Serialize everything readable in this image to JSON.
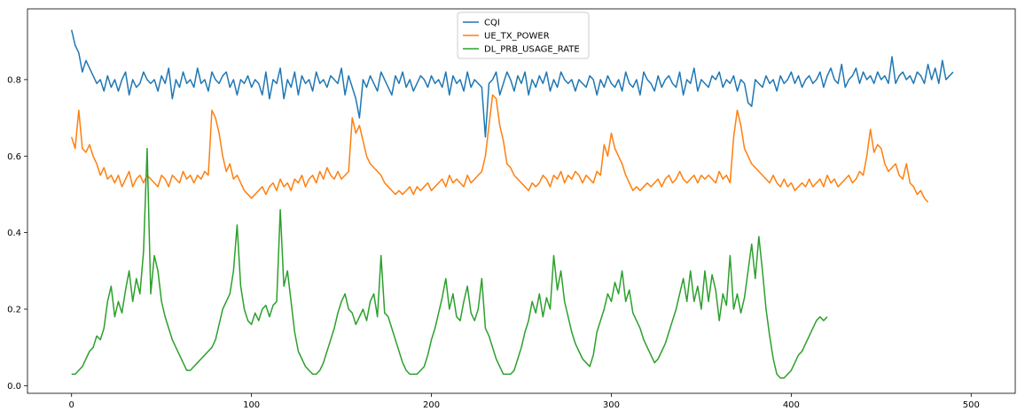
{
  "chart_data": {
    "type": "line",
    "title": "",
    "xlabel": "",
    "ylabel": "",
    "xlim": [
      -24.5,
      524.5
    ],
    "ylim": [
      -0.02,
      0.985
    ],
    "xticks": [
      0,
      100,
      200,
      300,
      400,
      500
    ],
    "xtick_labels": [
      "0",
      "100",
      "200",
      "300",
      "400",
      "500"
    ],
    "yticks": [
      0.0,
      0.2,
      0.4,
      0.6,
      0.8
    ],
    "ytick_labels": [
      "0.0",
      "0.2",
      "0.4",
      "0.6",
      "0.8"
    ],
    "grid": false,
    "legend_position": "top-center",
    "x_step": 2,
    "series": [
      {
        "name": "CQI",
        "color": "#1f77b4",
        "values": [
          0.93,
          0.89,
          0.87,
          0.82,
          0.85,
          0.83,
          0.81,
          0.79,
          0.8,
          0.77,
          0.81,
          0.78,
          0.8,
          0.77,
          0.8,
          0.82,
          0.76,
          0.8,
          0.78,
          0.79,
          0.82,
          0.8,
          0.79,
          0.8,
          0.77,
          0.81,
          0.79,
          0.83,
          0.75,
          0.8,
          0.78,
          0.82,
          0.79,
          0.8,
          0.78,
          0.83,
          0.79,
          0.8,
          0.77,
          0.82,
          0.8,
          0.79,
          0.81,
          0.82,
          0.78,
          0.8,
          0.76,
          0.8,
          0.79,
          0.81,
          0.78,
          0.8,
          0.79,
          0.76,
          0.82,
          0.75,
          0.8,
          0.79,
          0.83,
          0.75,
          0.8,
          0.78,
          0.82,
          0.76,
          0.81,
          0.79,
          0.8,
          0.77,
          0.82,
          0.79,
          0.8,
          0.78,
          0.81,
          0.8,
          0.79,
          0.83,
          0.76,
          0.81,
          0.78,
          0.75,
          0.7,
          0.8,
          0.78,
          0.81,
          0.79,
          0.77,
          0.82,
          0.8,
          0.78,
          0.76,
          0.81,
          0.79,
          0.82,
          0.78,
          0.8,
          0.77,
          0.79,
          0.81,
          0.8,
          0.78,
          0.81,
          0.79,
          0.8,
          0.78,
          0.82,
          0.76,
          0.81,
          0.79,
          0.8,
          0.77,
          0.82,
          0.78,
          0.8,
          0.79,
          0.78,
          0.65,
          0.79,
          0.8,
          0.82,
          0.76,
          0.79,
          0.82,
          0.8,
          0.77,
          0.81,
          0.79,
          0.82,
          0.76,
          0.8,
          0.78,
          0.81,
          0.79,
          0.82,
          0.77,
          0.8,
          0.78,
          0.82,
          0.8,
          0.79,
          0.8,
          0.77,
          0.8,
          0.79,
          0.78,
          0.81,
          0.8,
          0.76,
          0.8,
          0.78,
          0.81,
          0.79,
          0.78,
          0.8,
          0.77,
          0.82,
          0.79,
          0.78,
          0.8,
          0.76,
          0.82,
          0.8,
          0.79,
          0.77,
          0.81,
          0.78,
          0.8,
          0.81,
          0.79,
          0.78,
          0.82,
          0.76,
          0.8,
          0.79,
          0.83,
          0.77,
          0.8,
          0.79,
          0.78,
          0.81,
          0.8,
          0.82,
          0.78,
          0.8,
          0.79,
          0.81,
          0.77,
          0.8,
          0.79,
          0.74,
          0.73,
          0.8,
          0.79,
          0.78,
          0.81,
          0.79,
          0.8,
          0.77,
          0.81,
          0.79,
          0.8,
          0.82,
          0.79,
          0.81,
          0.78,
          0.8,
          0.81,
          0.79,
          0.8,
          0.82,
          0.78,
          0.81,
          0.83,
          0.8,
          0.79,
          0.84,
          0.78,
          0.8,
          0.81,
          0.83,
          0.79,
          0.82,
          0.8,
          0.81,
          0.79,
          0.82,
          0.8,
          0.81,
          0.79,
          0.86,
          0.79,
          0.81,
          0.82,
          0.8,
          0.81,
          0.79,
          0.82,
          0.81,
          0.79,
          0.84,
          0.8,
          0.83,
          0.79,
          0.85,
          0.8,
          0.81,
          0.82
        ]
      },
      {
        "name": "UE_TX_POWER",
        "color": "#ff7f0e",
        "values": [
          0.65,
          0.62,
          0.72,
          0.62,
          0.61,
          0.63,
          0.6,
          0.58,
          0.55,
          0.57,
          0.54,
          0.55,
          0.53,
          0.55,
          0.52,
          0.54,
          0.56,
          0.52,
          0.54,
          0.55,
          0.53,
          0.55,
          0.54,
          0.53,
          0.52,
          0.55,
          0.54,
          0.52,
          0.55,
          0.54,
          0.53,
          0.56,
          0.54,
          0.55,
          0.53,
          0.55,
          0.54,
          0.56,
          0.55,
          0.72,
          0.7,
          0.66,
          0.6,
          0.56,
          0.58,
          0.54,
          0.55,
          0.53,
          0.51,
          0.5,
          0.49,
          0.5,
          0.51,
          0.52,
          0.5,
          0.52,
          0.53,
          0.51,
          0.54,
          0.52,
          0.53,
          0.51,
          0.54,
          0.53,
          0.55,
          0.52,
          0.54,
          0.55,
          0.53,
          0.56,
          0.54,
          0.57,
          0.55,
          0.54,
          0.56,
          0.54,
          0.55,
          0.56,
          0.7,
          0.66,
          0.68,
          0.64,
          0.6,
          0.58,
          0.57,
          0.56,
          0.55,
          0.53,
          0.52,
          0.51,
          0.5,
          0.51,
          0.5,
          0.51,
          0.52,
          0.5,
          0.52,
          0.51,
          0.52,
          0.53,
          0.51,
          0.52,
          0.53,
          0.54,
          0.52,
          0.55,
          0.53,
          0.54,
          0.53,
          0.52,
          0.55,
          0.53,
          0.54,
          0.55,
          0.56,
          0.6,
          0.68,
          0.76,
          0.75,
          0.68,
          0.64,
          0.58,
          0.57,
          0.55,
          0.54,
          0.53,
          0.52,
          0.51,
          0.53,
          0.52,
          0.53,
          0.55,
          0.54,
          0.52,
          0.55,
          0.54,
          0.56,
          0.53,
          0.55,
          0.54,
          0.56,
          0.55,
          0.53,
          0.55,
          0.54,
          0.53,
          0.56,
          0.55,
          0.63,
          0.6,
          0.66,
          0.62,
          0.6,
          0.58,
          0.55,
          0.53,
          0.51,
          0.52,
          0.51,
          0.52,
          0.53,
          0.52,
          0.53,
          0.54,
          0.52,
          0.54,
          0.55,
          0.53,
          0.54,
          0.56,
          0.54,
          0.53,
          0.54,
          0.55,
          0.53,
          0.55,
          0.54,
          0.55,
          0.54,
          0.53,
          0.56,
          0.54,
          0.55,
          0.53,
          0.65,
          0.72,
          0.68,
          0.62,
          0.6,
          0.58,
          0.57,
          0.56,
          0.55,
          0.54,
          0.53,
          0.55,
          0.53,
          0.52,
          0.54,
          0.52,
          0.53,
          0.51,
          0.52,
          0.53,
          0.52,
          0.54,
          0.52,
          0.53,
          0.54,
          0.52,
          0.55,
          0.53,
          0.54,
          0.52,
          0.53,
          0.54,
          0.55,
          0.53,
          0.54,
          0.56,
          0.55,
          0.6,
          0.67,
          0.61,
          0.63,
          0.62,
          0.58,
          0.56,
          0.57,
          0.58,
          0.55,
          0.54,
          0.58,
          0.53,
          0.52,
          0.5,
          0.51,
          0.49,
          0.48
        ]
      },
      {
        "name": "DL_PRB_USAGE_RATE",
        "color": "#2ca02c",
        "values": [
          0.03,
          0.03,
          0.04,
          0.05,
          0.07,
          0.09,
          0.1,
          0.13,
          0.12,
          0.15,
          0.22,
          0.26,
          0.18,
          0.22,
          0.19,
          0.25,
          0.3,
          0.22,
          0.28,
          0.24,
          0.35,
          0.62,
          0.24,
          0.34,
          0.3,
          0.22,
          0.18,
          0.15,
          0.12,
          0.1,
          0.08,
          0.06,
          0.04,
          0.04,
          0.05,
          0.06,
          0.07,
          0.08,
          0.09,
          0.1,
          0.12,
          0.16,
          0.2,
          0.22,
          0.24,
          0.3,
          0.42,
          0.26,
          0.2,
          0.17,
          0.16,
          0.19,
          0.17,
          0.2,
          0.21,
          0.18,
          0.21,
          0.22,
          0.46,
          0.26,
          0.3,
          0.22,
          0.14,
          0.09,
          0.07,
          0.05,
          0.04,
          0.03,
          0.03,
          0.04,
          0.06,
          0.09,
          0.12,
          0.15,
          0.19,
          0.22,
          0.24,
          0.2,
          0.19,
          0.16,
          0.18,
          0.2,
          0.17,
          0.22,
          0.24,
          0.18,
          0.34,
          0.19,
          0.18,
          0.15,
          0.12,
          0.09,
          0.06,
          0.04,
          0.03,
          0.03,
          0.03,
          0.04,
          0.05,
          0.08,
          0.12,
          0.15,
          0.19,
          0.23,
          0.28,
          0.2,
          0.24,
          0.18,
          0.17,
          0.22,
          0.26,
          0.19,
          0.17,
          0.2,
          0.28,
          0.15,
          0.13,
          0.1,
          0.07,
          0.05,
          0.03,
          0.03,
          0.03,
          0.04,
          0.07,
          0.1,
          0.14,
          0.17,
          0.22,
          0.19,
          0.24,
          0.18,
          0.23,
          0.2,
          0.34,
          0.25,
          0.3,
          0.22,
          0.18,
          0.14,
          0.11,
          0.09,
          0.07,
          0.06,
          0.05,
          0.08,
          0.14,
          0.17,
          0.2,
          0.24,
          0.22,
          0.27,
          0.24,
          0.3,
          0.22,
          0.25,
          0.19,
          0.17,
          0.15,
          0.12,
          0.1,
          0.08,
          0.06,
          0.07,
          0.09,
          0.11,
          0.14,
          0.17,
          0.2,
          0.24,
          0.28,
          0.22,
          0.3,
          0.22,
          0.26,
          0.2,
          0.3,
          0.22,
          0.29,
          0.25,
          0.17,
          0.24,
          0.21,
          0.34,
          0.2,
          0.24,
          0.19,
          0.23,
          0.3,
          0.37,
          0.28,
          0.39,
          0.3,
          0.2,
          0.13,
          0.07,
          0.03,
          0.02,
          0.02,
          0.03,
          0.04,
          0.06,
          0.08,
          0.09,
          0.11,
          0.13,
          0.15,
          0.17,
          0.18,
          0.17,
          0.18
        ]
      }
    ]
  }
}
